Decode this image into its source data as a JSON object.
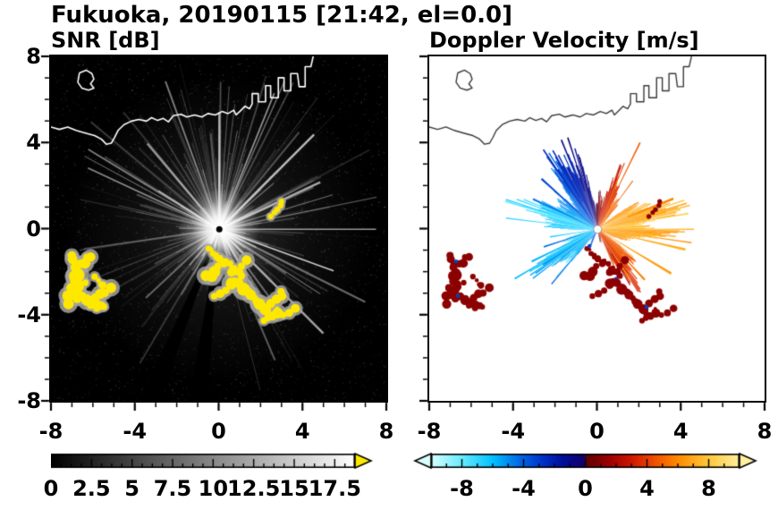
{
  "header": {
    "title": "Fukuoka, 20190115 [21:42, el=0.0]"
  },
  "panels": [
    {
      "title": "SNR [dB]"
    },
    {
      "title": "Doppler Velocity [m/s]"
    }
  ],
  "chart_data": [
    {
      "type": "heatmap",
      "title": "SNR [dB]",
      "xlim": [
        -8,
        8
      ],
      "ylim": [
        -8,
        8
      ],
      "xticks": [
        -8,
        -4,
        0,
        4,
        8
      ],
      "yticks": [
        8,
        4,
        0,
        -4,
        -8
      ],
      "units": "km",
      "background_color": "#000000",
      "colorbar": {
        "min": 0,
        "max": 18.75,
        "labeled_ticks": [
          0,
          2.5,
          5,
          7.5,
          10,
          12.5,
          15,
          17.5
        ],
        "minor_tick_step": 0.625,
        "gradient": [
          [
            0,
            "#000000"
          ],
          [
            18.75,
            "#ffffff"
          ]
        ],
        "over_arrow_color": "#ffe800"
      },
      "features": {
        "radar_center_km": [
          0,
          0
        ],
        "description": "Radial SNR spokes emanate from the radar at the origin over a black background; bright white core at the radar; two narrow blocked black sectors toward the south; bright yellow (>17.5 dB) ground-clutter patches on the southwest islands and along the coastline arc running south-southeast of the radar; faint sea-clutter speckle elsewhere; white coastline across the northern part of the domain."
      }
    },
    {
      "type": "heatmap",
      "title": "Doppler Velocity [m/s]",
      "xlim": [
        -8,
        8
      ],
      "ylim": [
        -8,
        8
      ],
      "xticks": [
        -8,
        -4,
        0,
        4,
        8
      ],
      "yticks": [
        8,
        4,
        0,
        -4,
        -8
      ],
      "units": "km",
      "background_color": "#ffffff",
      "colorbar": {
        "min": -10,
        "max": 10,
        "labeled_ticks": [
          -8,
          -4,
          0,
          4,
          8
        ],
        "minor_tick_step": 1,
        "gradient": [
          [
            -10,
            "#d8ffff"
          ],
          [
            -8,
            "#66eaff"
          ],
          [
            -6,
            "#00c0ff"
          ],
          [
            -4.5,
            "#0072e8"
          ],
          [
            -3,
            "#0038d0"
          ],
          [
            -1.5,
            "#000e9c"
          ],
          [
            -0.05,
            "#14006a"
          ],
          [
            0.05,
            "#600000"
          ],
          [
            1.5,
            "#9c0000"
          ],
          [
            3,
            "#d01800"
          ],
          [
            4.5,
            "#f05000"
          ],
          [
            6,
            "#ff8c00"
          ],
          [
            8,
            "#ffc83c"
          ],
          [
            10,
            "#fff0a0"
          ]
        ],
        "under_arrow_color": "#d8ffff",
        "over_arrow_color": "#fff0a0"
      },
      "features": {
        "radar_center_km": [
          0,
          0
        ],
        "max_speed_ms": 7.4,
        "description": "Doppler velocity fan around the radar: negative velocities (cyan/blue, toward radar) west and northwest, positive velocities (red/orange/yellow, away from radar) east and southeast; near-zero dark-blue/dark-red boundary aligned roughly north; white gap toward the south; dark-red ground clutter on the southwest islands and along the coastline arc; gray coastline across the north."
      }
    }
  ],
  "map": {
    "coastline_color_snr": "#ffffff",
    "coastline_color_vel": "#3a3a3a",
    "clutter_color_snr": "#ffe800",
    "clutter_fringe_color_snr": "rgba(165,165,165,0.85)",
    "clutter_color_vel": "#8c0000",
    "clutter_speck_color_vel": "#0040cc",
    "coastline_main": [
      [
        0.0,
        0.205
      ],
      [
        0.025,
        0.212
      ],
      [
        0.05,
        0.205
      ],
      [
        0.075,
        0.215
      ],
      [
        0.1,
        0.222
      ],
      [
        0.13,
        0.23
      ],
      [
        0.15,
        0.24
      ],
      [
        0.165,
        0.255
      ],
      [
        0.18,
        0.252
      ],
      [
        0.19,
        0.235
      ],
      [
        0.2,
        0.215
      ],
      [
        0.218,
        0.198
      ],
      [
        0.24,
        0.188
      ],
      [
        0.262,
        0.183
      ],
      [
        0.285,
        0.188
      ],
      [
        0.3,
        0.178
      ],
      [
        0.318,
        0.186
      ],
      [
        0.335,
        0.18
      ],
      [
        0.35,
        0.19
      ],
      [
        0.365,
        0.172
      ],
      [
        0.388,
        0.168
      ],
      [
        0.405,
        0.176
      ],
      [
        0.428,
        0.17
      ],
      [
        0.45,
        0.176
      ],
      [
        0.468,
        0.166
      ],
      [
        0.49,
        0.17
      ],
      [
        0.51,
        0.16
      ],
      [
        0.528,
        0.166
      ],
      [
        0.545,
        0.156
      ],
      [
        0.552,
        0.17
      ],
      [
        0.565,
        0.158
      ],
      [
        0.578,
        0.145
      ],
      [
        0.592,
        0.152
      ],
      [
        0.6,
        0.138
      ],
      [
        0.6,
        0.108
      ],
      [
        0.618,
        0.108
      ],
      [
        0.618,
        0.132
      ],
      [
        0.64,
        0.132
      ],
      [
        0.64,
        0.085
      ],
      [
        0.655,
        0.085
      ],
      [
        0.655,
        0.12
      ],
      [
        0.678,
        0.12
      ],
      [
        0.678,
        0.062
      ],
      [
        0.695,
        0.062
      ],
      [
        0.695,
        0.1
      ],
      [
        0.715,
        0.1
      ],
      [
        0.715,
        0.05
      ],
      [
        0.735,
        0.05
      ],
      [
        0.74,
        0.088
      ],
      [
        0.758,
        0.088
      ],
      [
        0.758,
        0.03
      ],
      [
        0.775,
        0.03
      ],
      [
        0.782,
        0.0
      ]
    ],
    "island_topleft": [
      [
        0.085,
        0.048
      ],
      [
        0.105,
        0.04
      ],
      [
        0.122,
        0.05
      ],
      [
        0.128,
        0.066
      ],
      [
        0.118,
        0.08
      ],
      [
        0.128,
        0.092
      ],
      [
        0.112,
        0.098
      ],
      [
        0.092,
        0.092
      ],
      [
        0.08,
        0.075
      ],
      [
        0.085,
        0.048
      ]
    ],
    "clutter_patches": [
      [
        0.062,
        0.578,
        5
      ],
      [
        0.072,
        0.603,
        6
      ],
      [
        0.08,
        0.635,
        7
      ],
      [
        0.083,
        0.662,
        6
      ],
      [
        0.05,
        0.695,
        6
      ],
      [
        0.078,
        0.703,
        5
      ],
      [
        0.107,
        0.708,
        6
      ],
      [
        0.132,
        0.722,
        7
      ],
      [
        0.154,
        0.668,
        4
      ],
      [
        0.47,
        0.558,
        4
      ],
      [
        0.492,
        0.578,
        5
      ],
      [
        0.516,
        0.602,
        6
      ],
      [
        0.538,
        0.627,
        6
      ],
      [
        0.549,
        0.654,
        6
      ],
      [
        0.568,
        0.637,
        4
      ],
      [
        0.59,
        0.685,
        6
      ],
      [
        0.614,
        0.712,
        7
      ],
      [
        0.64,
        0.735,
        6
      ],
      [
        0.66,
        0.754,
        6
      ],
      [
        0.674,
        0.732,
        4
      ],
      [
        0.655,
        0.465,
        4
      ]
    ]
  }
}
